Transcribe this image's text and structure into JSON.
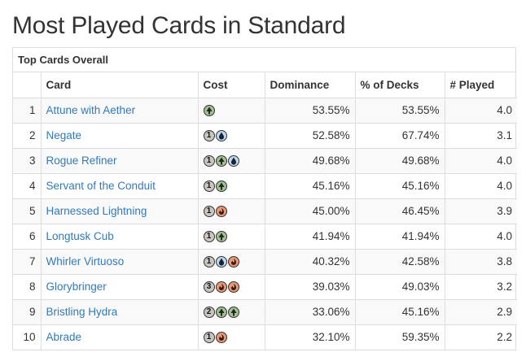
{
  "page": {
    "title": "Most Played Cards in Standard"
  },
  "panel": {
    "heading": "Top Cards Overall"
  },
  "table": {
    "columns": [
      "",
      "Card",
      "Cost",
      "Dominance",
      "% of Decks",
      "# Played"
    ],
    "rows": [
      {
        "rank": "1",
        "card": "Attune with Aether",
        "cost": [
          "G"
        ],
        "dominance": "53.55%",
        "decks": "53.55%",
        "played": "4.0"
      },
      {
        "rank": "2",
        "card": "Negate",
        "cost": [
          "1",
          "U"
        ],
        "dominance": "52.58%",
        "decks": "67.74%",
        "played": "3.1"
      },
      {
        "rank": "3",
        "card": "Rogue Refiner",
        "cost": [
          "1",
          "G",
          "U"
        ],
        "dominance": "49.68%",
        "decks": "49.68%",
        "played": "4.0"
      },
      {
        "rank": "4",
        "card": "Servant of the Conduit",
        "cost": [
          "1",
          "G"
        ],
        "dominance": "45.16%",
        "decks": "45.16%",
        "played": "4.0"
      },
      {
        "rank": "5",
        "card": "Harnessed Lightning",
        "cost": [
          "1",
          "R"
        ],
        "dominance": "45.00%",
        "decks": "46.45%",
        "played": "3.9"
      },
      {
        "rank": "6",
        "card": "Longtusk Cub",
        "cost": [
          "1",
          "G"
        ],
        "dominance": "41.94%",
        "decks": "41.94%",
        "played": "4.0"
      },
      {
        "rank": "7",
        "card": "Whirler Virtuoso",
        "cost": [
          "1",
          "U",
          "R"
        ],
        "dominance": "40.32%",
        "decks": "42.58%",
        "played": "3.8"
      },
      {
        "rank": "8",
        "card": "Glorybringer",
        "cost": [
          "3",
          "R",
          "R"
        ],
        "dominance": "39.03%",
        "decks": "49.03%",
        "played": "3.2"
      },
      {
        "rank": "9",
        "card": "Bristling Hydra",
        "cost": [
          "2",
          "G",
          "G"
        ],
        "dominance": "33.06%",
        "decks": "45.16%",
        "played": "2.9"
      },
      {
        "rank": "10",
        "card": "Abrade",
        "cost": [
          "1",
          "R"
        ],
        "dominance": "32.10%",
        "decks": "59.35%",
        "played": "2.2"
      }
    ]
  },
  "mana_symbols": {
    "G": {
      "icon": "green-mana-tree-icon",
      "color": "#a3c095"
    },
    "U": {
      "icon": "blue-mana-drop-icon",
      "color": "#c1d7e9"
    },
    "R": {
      "icon": "red-mana-fire-icon",
      "color": "#e49977"
    },
    "generic": {
      "icon": "generic-mana-icon",
      "color": "#cac5c0"
    }
  },
  "colors": {
    "link": "#337ab7",
    "text": "#333333",
    "border": "#dddddd",
    "stripe": "#f9f9f9"
  }
}
